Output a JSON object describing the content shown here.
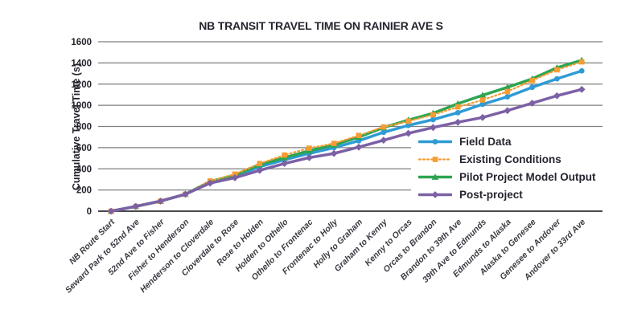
{
  "page": {
    "background": "#ffffff"
  },
  "chart_data": {
    "type": "line",
    "title": "NB TRANSIT TRAVEL TIME ON RAINIER AVE S",
    "ylabel": "Cumulative Travel Time (s)",
    "xlabel": "",
    "ylim": [
      0,
      1600
    ],
    "ytick_step": 200,
    "yticks": [
      0,
      200,
      400,
      600,
      800,
      1000,
      1200,
      1400,
      1600
    ],
    "grid": "horizontal",
    "legend_position": "inside-right",
    "categories": [
      "NB Route Start",
      "Seward Park to 52nd Ave",
      "52nd Ave to Fisher",
      "Fisher to Henderson",
      "Henderson to Cloverdale",
      "Cloverdale to Rose",
      "Rose to Holden",
      "Holden to Othello",
      "Othello to Frontenac",
      "Frontenac to Holly",
      "Holly to Graham",
      "Graham to Kenny",
      "Kenny to Orcas",
      "Orcas to Brandon",
      "Brandon to 39th Ave",
      "39th Ave to Edmunds",
      "Edmunds to Alaska",
      "Alaska to Genesee",
      "Genesee to Andover",
      "Andover to 33rd Ave"
    ],
    "series": [
      {
        "name": "Field Data",
        "color": "#2E9BD5",
        "line": "solid",
        "marker": "circle",
        "values": [
          0,
          45,
          95,
          160,
          270,
          330,
          420,
          485,
          545,
          600,
          665,
          745,
          810,
          865,
          930,
          1010,
          1080,
          1170,
          1250,
          1325
        ]
      },
      {
        "name": "Existing Conditions",
        "color": "#F59C32",
        "line": "dotted",
        "marker": "square",
        "values": [
          0,
          45,
          95,
          160,
          285,
          350,
          450,
          530,
          595,
          640,
          715,
          795,
          850,
          910,
          985,
          1050,
          1130,
          1235,
          1335,
          1410
        ]
      },
      {
        "name": "Pilot Project Model Output",
        "color": "#2EA450",
        "line": "solid",
        "marker": "triangle",
        "values": [
          0,
          45,
          95,
          160,
          280,
          340,
          440,
          505,
          570,
          625,
          700,
          790,
          860,
          925,
          1015,
          1095,
          1170,
          1250,
          1355,
          1425
        ]
      },
      {
        "name": "Post-project",
        "color": "#7C60A5",
        "line": "solid",
        "marker": "diamond",
        "values": [
          0,
          45,
          95,
          160,
          265,
          315,
          385,
          450,
          505,
          545,
          605,
          670,
          735,
          790,
          840,
          885,
          950,
          1020,
          1090,
          1150
        ]
      }
    ],
    "axis_text_color": "#26242E",
    "category_text_color": "#3A3A42",
    "gridline_color": "#7F7F7F",
    "zero_line_color": "#4A4A4A"
  }
}
